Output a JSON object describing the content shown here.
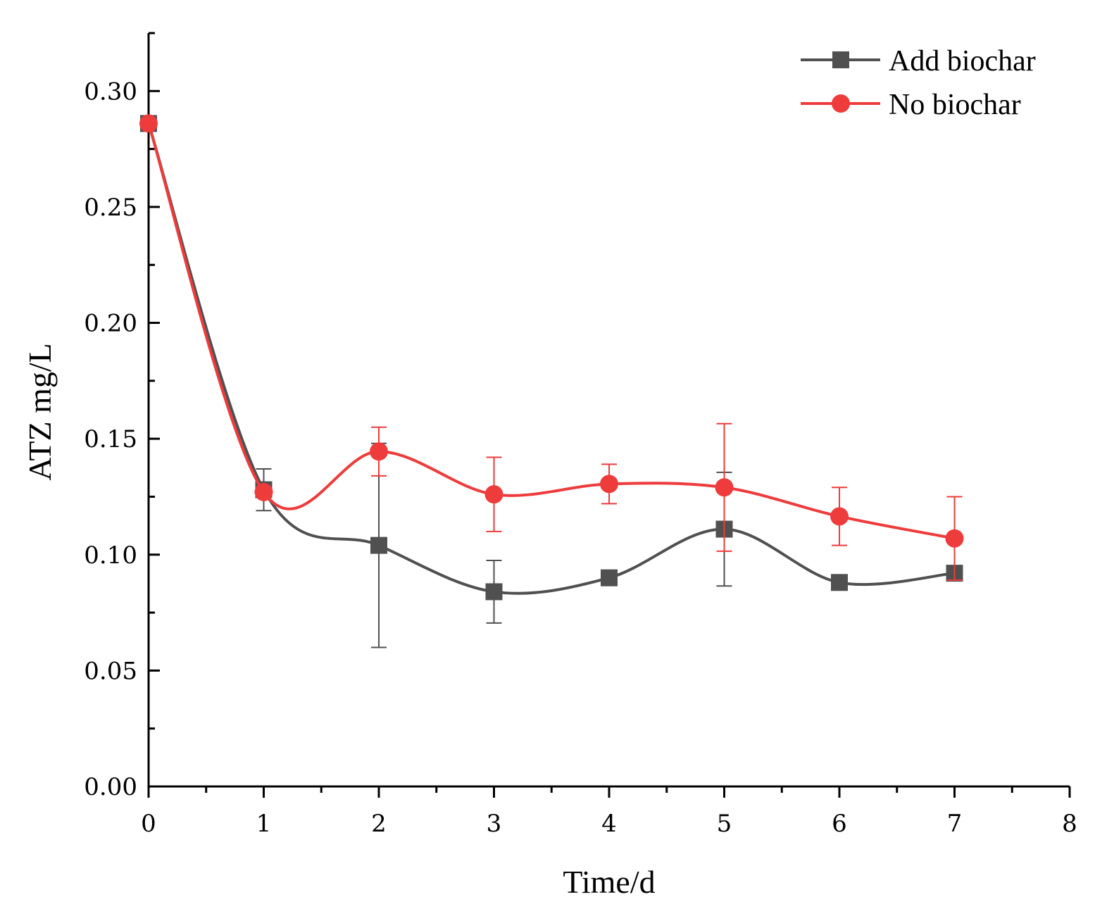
{
  "chart_data": {
    "type": "line",
    "title": "",
    "xlabel": "Time/d",
    "ylabel": "ATZ mg/L",
    "xlim": [
      0,
      8
    ],
    "ylim": [
      0,
      0.325
    ],
    "x_ticks": [
      "0",
      "1",
      "2",
      "3",
      "4",
      "5",
      "6",
      "7",
      "8"
    ],
    "y_ticks": [
      "0.00",
      "0.05",
      "0.10",
      "0.15",
      "0.20",
      "0.25",
      "0.30"
    ],
    "grid": false,
    "legend_position": "top-right",
    "x": [
      0,
      1,
      2,
      3,
      4,
      5,
      6,
      7
    ],
    "series": [
      {
        "name": "Add biochar",
        "color": "#505050",
        "marker": "square",
        "values": [
          0.286,
          0.128,
          0.104,
          0.084,
          0.09,
          0.111,
          0.088,
          0.092
        ],
        "errors": [
          0.0,
          0.009,
          0.044,
          0.0135,
          0.0,
          0.0245,
          0.0,
          0.0
        ]
      },
      {
        "name": "No biochar",
        "color": "#ee3b3b",
        "marker": "circle",
        "values": [
          0.286,
          0.127,
          0.1445,
          0.126,
          0.1305,
          0.129,
          0.1165,
          0.107
        ],
        "errors": [
          0.0,
          0.0,
          0.0105,
          0.016,
          0.0085,
          0.0275,
          0.0125,
          0.018
        ]
      }
    ]
  }
}
